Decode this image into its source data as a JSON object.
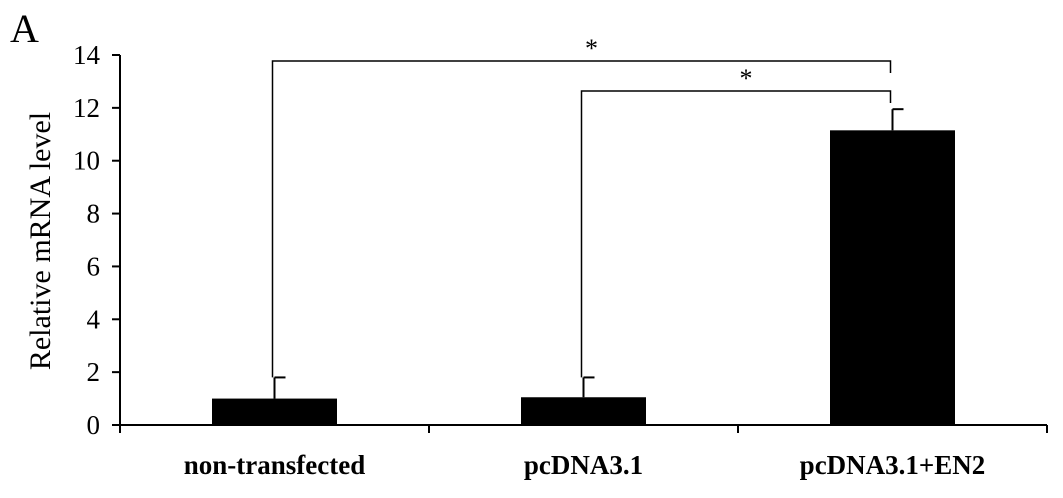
{
  "panel_label": "A",
  "chart_data": {
    "type": "bar",
    "categories": [
      "non-transfected",
      "pcDNA3.1",
      "pcDNA3.1+EN2"
    ],
    "values": [
      1.0,
      1.05,
      11.15
    ],
    "errors": [
      0.8,
      0.75,
      0.8
    ],
    "title": "",
    "xlabel": "",
    "ylabel": "Relative mRNA level",
    "ylim": [
      0,
      14
    ],
    "yticks": [
      "0",
      "2",
      "4",
      "6",
      "8",
      "10",
      "12",
      "14"
    ],
    "grid": false,
    "legend": "none",
    "bar_color": "#000000",
    "significance": [
      {
        "from": 0,
        "to": 2,
        "label": "*"
      },
      {
        "from": 1,
        "to": 2,
        "label": "*"
      }
    ]
  }
}
